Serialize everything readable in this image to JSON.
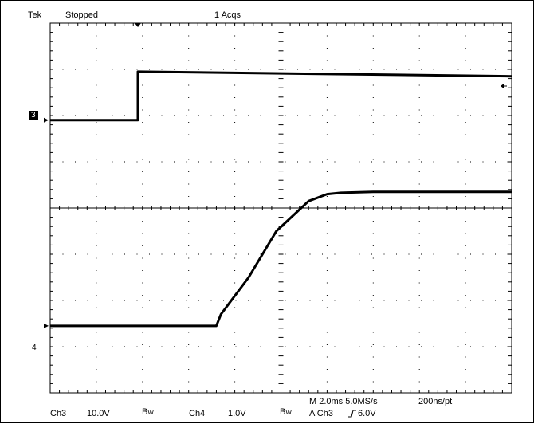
{
  "header": {
    "brand": "Tek",
    "run_state": "Stopped",
    "acquisitions": "1 Acqs"
  },
  "markers": {
    "ch3": "3",
    "ch4": "4"
  },
  "footer": {
    "ch3_label": "Ch3",
    "ch3_scale": "10.0V",
    "bw_label_1": "B",
    "bw_sub_1": "W",
    "ch4_label": "Ch4",
    "ch4_scale": "1.0V",
    "bw_label_2": "B",
    "bw_sub_2": "W",
    "timebase": "M 2.0ms 5.0MS/s",
    "resolution": "200ns/pt",
    "trigger": "A Ch3",
    "trigger_slope_icon": "rising-edge-icon",
    "trigger_level": "6.0V"
  },
  "colors": {
    "trace": "#000000",
    "graticule": "#000000",
    "background": "#ffffff"
  },
  "chart_data": {
    "type": "line",
    "title": "",
    "xlabel": "",
    "ylabel": "",
    "grid": true,
    "x_divisions": 10,
    "y_divisions": 8,
    "units": "divisions",
    "series": [
      {
        "x": [
          0,
          1.9,
          1.9,
          10
        ],
        "y": [
          5.9,
          5.9,
          6.95,
          6.85
        ]
      },
      {
        "x": [
          0,
          3.6,
          3.7,
          4.3,
          4.9,
          5.6,
          6.0,
          6.3,
          7.0,
          10
        ],
        "y": [
          1.45,
          1.45,
          1.7,
          2.5,
          3.5,
          4.15,
          4.3,
          4.33,
          4.35,
          4.35
        ]
      }
    ],
    "trigger_position_div": 1.9,
    "ch3_ground_div": 5.9,
    "ch4_ground_div": 1.45
  }
}
